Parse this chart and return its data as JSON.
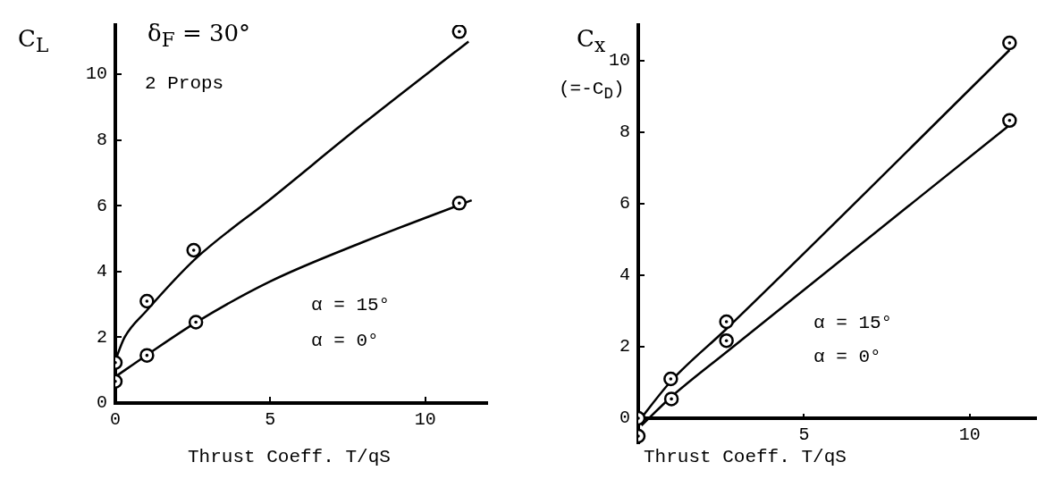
{
  "chart_data": [
    {
      "type": "scatter",
      "ylabel": "C$_{L}$",
      "xlabel": "Thrust Coeff. T/qS",
      "annotations": [
        "δ$_{F}$ = 30°",
        "2 Props",
        "α = 15°",
        "α = 0°"
      ],
      "xlim": [
        0,
        12
      ],
      "ylim": [
        0,
        11.5
      ],
      "xticks": [
        0,
        5,
        10
      ],
      "yticks": [
        0,
        2,
        4,
        6,
        8,
        10
      ],
      "grid": false,
      "legend": false,
      "marker": "circle",
      "series": [
        {
          "color": "#000000",
          "x": [
            0,
            1.02,
            2.53,
            11.1
          ],
          "values": [
            1.23,
            3.1,
            4.65,
            11.3
          ]
        },
        {
          "color": "#000000",
          "x": [
            0,
            1.02,
            2.6,
            11.1
          ],
          "values": [
            0.66,
            1.45,
            2.46,
            6.08
          ]
        },
        {
          "type": "line",
          "color": "#000000",
          "marker": "none",
          "line_style": "solid",
          "x": [
            0,
            0.3,
            1,
            2.6,
            5,
            8,
            11.4
          ],
          "values": [
            1.3,
            2.0,
            2.8,
            4.4,
            6.2,
            8.5,
            11.0
          ]
        },
        {
          "type": "line",
          "color": "#000000",
          "marker": "none",
          "line_style": "solid",
          "x": [
            0,
            1,
            2.6,
            5,
            8,
            11.5
          ],
          "values": [
            0.8,
            1.45,
            2.45,
            3.7,
            4.9,
            6.17
          ]
        }
      ]
    },
    {
      "type": "scatter",
      "ylabel": "C$_{x}$",
      "y2label": "(=-C$_{D}$)",
      "xlabel": "Thrust Coeff. T/qS",
      "annotations": [
        "α = 15°",
        "α = 0°"
      ],
      "xlim": [
        0,
        12
      ],
      "ylim": [
        -0.7,
        11
      ],
      "xticks": [
        5,
        10
      ],
      "yticks": [
        0,
        2,
        4,
        6,
        8,
        10
      ],
      "grid": false,
      "legend": false,
      "marker": "circle",
      "series": [
        {
          "color": "#000000",
          "x": [
            0,
            0.98,
            2.66,
            11.2
          ],
          "values": [
            0,
            1.1,
            2.7,
            10.5
          ]
        },
        {
          "color": "#000000",
          "x": [
            0,
            1,
            2.66,
            11.2
          ],
          "values": [
            -0.5,
            0.54,
            2.17,
            8.33
          ]
        },
        {
          "type": "line",
          "color": "#000000",
          "marker": "none",
          "line_style": "solid",
          "x": [
            0,
            1,
            2.66,
            11.2
          ],
          "values": [
            -0.1,
            1.05,
            2.5,
            10.3
          ]
        },
        {
          "type": "line",
          "color": "#000000",
          "marker": "none",
          "line_style": "solid",
          "x": [
            0.1,
            1,
            2.66,
            11.2
          ],
          "values": [
            -0.2,
            0.6,
            1.85,
            8.2
          ]
        }
      ]
    }
  ]
}
